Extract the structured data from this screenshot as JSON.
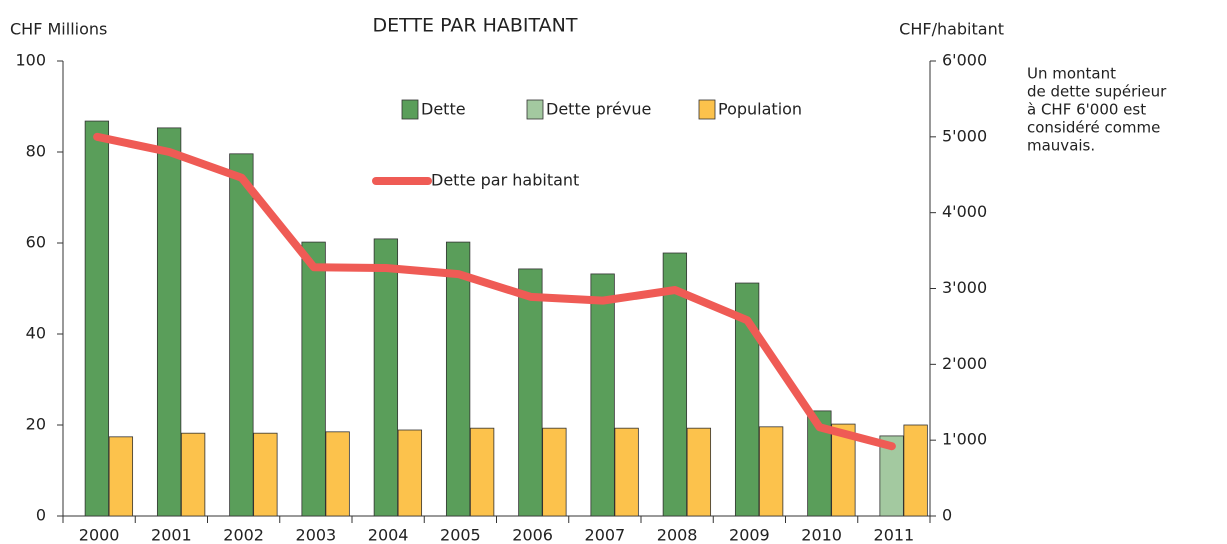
{
  "chart_data": {
    "type": "bar",
    "title": "DETTE PAR HABITANT",
    "y_label": "CHF Millions",
    "y2_label": "CHF/habitant",
    "annotation": [
      "Un montant",
      "de dette supérieur",
      "à CHF 6'000 est",
      "considéré comme",
      "mauvais."
    ],
    "categories": [
      "2000",
      "2001",
      "2002",
      "2003",
      "2004",
      "2005",
      "2006",
      "2007",
      "2008",
      "2009",
      "2010",
      "2011"
    ],
    "series": [
      {
        "name": "Dette",
        "color": "#5a9e5a",
        "slot": 0,
        "values": [
          86.8,
          85.3,
          79.6,
          60.2,
          60.9,
          60.2,
          54.3,
          53.2,
          57.8,
          51.2,
          23.1,
          null
        ]
      },
      {
        "name": "Dette prévue",
        "color": "#a3c9a0",
        "slot": 0,
        "values": [
          null,
          null,
          null,
          null,
          null,
          null,
          null,
          null,
          null,
          null,
          null,
          17.6
        ]
      },
      {
        "name": "Population",
        "color": "#fcc24c",
        "slot": 1,
        "values": [
          17.4,
          18.2,
          18.2,
          18.5,
          18.9,
          19.3,
          19.3,
          19.3,
          19.3,
          19.6,
          20.2,
          20.0
        ]
      },
      {
        "name": "Dette par habitant",
        "color": "#ef5b55",
        "type": "line",
        "axis": "y2",
        "values": [
          5000,
          4800,
          4460,
          3280,
          3270,
          3190,
          2890,
          2840,
          2980,
          2580,
          1170,
          920
        ]
      }
    ],
    "ylim": [
      0,
      100
    ],
    "yticks": [
      0,
      20,
      40,
      60,
      80,
      100
    ],
    "y2lim": [
      0,
      6000
    ],
    "y2ticks": [
      0,
      {
        "value": 1000,
        "label": "1'000"
      },
      {
        "value": 2000,
        "label": "2'000"
      },
      {
        "value": 3000,
        "label": "3'000"
      },
      {
        "value": 4000,
        "label": "4'000"
      },
      {
        "value": 5000,
        "label": "5'000"
      },
      {
        "value": 6000,
        "label": "6'000"
      }
    ]
  }
}
